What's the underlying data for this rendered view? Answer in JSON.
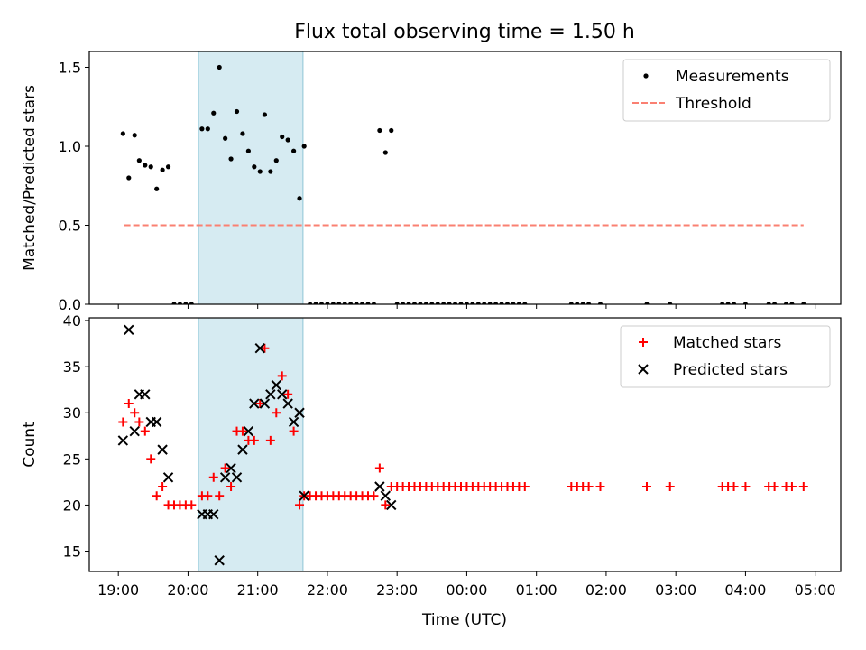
{
  "figure": {
    "title": "Flux total observing time = 1.50 h",
    "xlabel": "Time (UTC)"
  },
  "colors": {
    "measurement": "#000000",
    "threshold": "#fa8072",
    "matched": "#ff0000",
    "predicted": "#000000",
    "highlight": "#add8e6",
    "highlight_edge": "#8fc6d6"
  },
  "chart_data": [
    {
      "type": "scatter",
      "ylabel": "Matched/Predicted stars",
      "ylim": [
        0,
        1.6
      ],
      "yticks": [
        0.0,
        0.5,
        1.0,
        1.5
      ],
      "ytick_labels": [
        "0.0",
        "0.5",
        "1.0",
        "1.5"
      ],
      "xlim": [
        "18:35",
        "29:22"
      ],
      "xticks": [
        "19:00",
        "20:00",
        "21:00",
        "22:00",
        "23:00",
        "24:00",
        "25:00",
        "26:00",
        "27:00",
        "28:00",
        "29:00"
      ],
      "xtick_labels": [
        "",
        "",
        "",
        "",
        "",
        "",
        "",
        "",
        "",
        "",
        ""
      ],
      "highlight_span": [
        "20:09",
        "21:39"
      ],
      "legend": {
        "position": "upper right",
        "entries": [
          "Measurements",
          "Threshold"
        ]
      },
      "threshold": {
        "name": "Threshold",
        "y": 0.5,
        "x_range": [
          "19:05",
          "28:50"
        ]
      },
      "series": [
        {
          "name": "Measurements",
          "points": [
            [
              "19:04",
              1.08
            ],
            [
              "19:09",
              0.8
            ],
            [
              "19:14",
              1.07
            ],
            [
              "19:18",
              0.91
            ],
            [
              "19:23",
              0.88
            ],
            [
              "19:28",
              0.87
            ],
            [
              "19:33",
              0.73
            ],
            [
              "19:38",
              0.85
            ],
            [
              "19:43",
              0.87
            ],
            [
              "19:48",
              0.0
            ],
            [
              "19:53",
              0.0
            ],
            [
              "19:58",
              0.0
            ],
            [
              "20:03",
              0.0
            ],
            [
              "20:12",
              1.11
            ],
            [
              "20:17",
              1.11
            ],
            [
              "20:22",
              1.21
            ],
            [
              "20:27",
              1.5
            ],
            [
              "20:32",
              1.05
            ],
            [
              "20:37",
              0.92
            ],
            [
              "20:42",
              1.22
            ],
            [
              "20:47",
              1.08
            ],
            [
              "20:52",
              0.97
            ],
            [
              "20:57",
              0.87
            ],
            [
              "21:02",
              0.84
            ],
            [
              "21:06",
              1.2
            ],
            [
              "21:11",
              0.84
            ],
            [
              "21:16",
              0.91
            ],
            [
              "21:21",
              1.06
            ],
            [
              "21:26",
              1.04
            ],
            [
              "21:31",
              0.97
            ],
            [
              "21:36",
              0.67
            ],
            [
              "21:40",
              1.0
            ],
            [
              "21:45",
              0.0
            ],
            [
              "21:50",
              0.0
            ],
            [
              "21:55",
              0.0
            ],
            [
              "22:00",
              0.0
            ],
            [
              "22:05",
              0.0
            ],
            [
              "22:10",
              0.0
            ],
            [
              "22:15",
              0.0
            ],
            [
              "22:20",
              0.0
            ],
            [
              "22:25",
              0.0
            ],
            [
              "22:30",
              0.0
            ],
            [
              "22:35",
              0.0
            ],
            [
              "22:40",
              0.0
            ],
            [
              "22:45",
              1.1
            ],
            [
              "22:50",
              0.96
            ],
            [
              "22:55",
              1.1
            ],
            [
              "23:00",
              0.0
            ],
            [
              "23:05",
              0.0
            ],
            [
              "23:10",
              0.0
            ],
            [
              "23:15",
              0.0
            ],
            [
              "23:20",
              0.0
            ],
            [
              "23:25",
              0.0
            ],
            [
              "23:30",
              0.0
            ],
            [
              "23:35",
              0.0
            ],
            [
              "23:40",
              0.0
            ],
            [
              "23:45",
              0.0
            ],
            [
              "23:50",
              0.0
            ],
            [
              "23:55",
              0.0
            ],
            [
              "24:00",
              0.0
            ],
            [
              "24:05",
              0.0
            ],
            [
              "24:10",
              0.0
            ],
            [
              "24:15",
              0.0
            ],
            [
              "24:20",
              0.0
            ],
            [
              "24:25",
              0.0
            ],
            [
              "24:30",
              0.0
            ],
            [
              "24:35",
              0.0
            ],
            [
              "24:40",
              0.0
            ],
            [
              "24:45",
              0.0
            ],
            [
              "24:50",
              0.0
            ],
            [
              "25:30",
              0.0
            ],
            [
              "25:35",
              0.0
            ],
            [
              "25:40",
              0.0
            ],
            [
              "25:45",
              0.0
            ],
            [
              "25:55",
              0.0
            ],
            [
              "26:35",
              0.0
            ],
            [
              "26:55",
              0.0
            ],
            [
              "27:40",
              0.0
            ],
            [
              "27:45",
              0.0
            ],
            [
              "27:50",
              0.0
            ],
            [
              "28:00",
              0.0
            ],
            [
              "28:20",
              0.0
            ],
            [
              "28:25",
              0.0
            ],
            [
              "28:35",
              0.0
            ],
            [
              "28:40",
              0.0
            ],
            [
              "28:50",
              0.0
            ]
          ]
        }
      ]
    },
    {
      "type": "scatter",
      "ylabel": "Count",
      "ylim": [
        12.8,
        40.3
      ],
      "yticks": [
        15,
        20,
        25,
        30,
        35,
        40
      ],
      "ytick_labels": [
        "15",
        "20",
        "25",
        "30",
        "35",
        "40"
      ],
      "xlim": [
        "18:35",
        "29:22"
      ],
      "xticks": [
        "19:00",
        "20:00",
        "21:00",
        "22:00",
        "23:00",
        "24:00",
        "25:00",
        "26:00",
        "27:00",
        "28:00",
        "29:00"
      ],
      "xtick_labels": [
        "19:00",
        "20:00",
        "21:00",
        "22:00",
        "23:00",
        "00:00",
        "01:00",
        "02:00",
        "03:00",
        "04:00",
        "05:00"
      ],
      "highlight_span": [
        "20:09",
        "21:39"
      ],
      "legend": {
        "position": "upper right",
        "entries": [
          "Matched stars",
          "Predicted stars"
        ]
      },
      "series": [
        {
          "name": "Matched stars",
          "marker": "plus",
          "points": [
            [
              "19:04",
              29
            ],
            [
              "19:09",
              31
            ],
            [
              "19:14",
              30
            ],
            [
              "19:18",
              29
            ],
            [
              "19:23",
              28
            ],
            [
              "19:28",
              25
            ],
            [
              "19:33",
              21
            ],
            [
              "19:38",
              22
            ],
            [
              "19:43",
              20
            ],
            [
              "19:48",
              20
            ],
            [
              "19:53",
              20
            ],
            [
              "19:58",
              20
            ],
            [
              "20:03",
              20
            ],
            [
              "20:12",
              21
            ],
            [
              "20:17",
              21
            ],
            [
              "20:22",
              23
            ],
            [
              "20:27",
              21
            ],
            [
              "20:32",
              24
            ],
            [
              "20:37",
              22
            ],
            [
              "20:42",
              28
            ],
            [
              "20:47",
              28
            ],
            [
              "20:52",
              27
            ],
            [
              "20:57",
              27
            ],
            [
              "21:02",
              31
            ],
            [
              "21:06",
              37
            ],
            [
              "21:11",
              27
            ],
            [
              "21:16",
              30
            ],
            [
              "21:21",
              34
            ],
            [
              "21:26",
              32
            ],
            [
              "21:31",
              28
            ],
            [
              "21:36",
              20
            ],
            [
              "21:40",
              21
            ],
            [
              "21:45",
              21
            ],
            [
              "21:50",
              21
            ],
            [
              "21:55",
              21
            ],
            [
              "22:00",
              21
            ],
            [
              "22:05",
              21
            ],
            [
              "22:10",
              21
            ],
            [
              "22:15",
              21
            ],
            [
              "22:20",
              21
            ],
            [
              "22:25",
              21
            ],
            [
              "22:30",
              21
            ],
            [
              "22:35",
              21
            ],
            [
              "22:40",
              21
            ],
            [
              "22:45",
              24
            ],
            [
              "22:50",
              20
            ],
            [
              "22:55",
              22
            ],
            [
              "23:00",
              22
            ],
            [
              "23:05",
              22
            ],
            [
              "23:10",
              22
            ],
            [
              "23:15",
              22
            ],
            [
              "23:20",
              22
            ],
            [
              "23:25",
              22
            ],
            [
              "23:30",
              22
            ],
            [
              "23:35",
              22
            ],
            [
              "23:40",
              22
            ],
            [
              "23:45",
              22
            ],
            [
              "23:50",
              22
            ],
            [
              "23:55",
              22
            ],
            [
              "24:00",
              22
            ],
            [
              "24:05",
              22
            ],
            [
              "24:10",
              22
            ],
            [
              "24:15",
              22
            ],
            [
              "24:20",
              22
            ],
            [
              "24:25",
              22
            ],
            [
              "24:30",
              22
            ],
            [
              "24:35",
              22
            ],
            [
              "24:40",
              22
            ],
            [
              "24:45",
              22
            ],
            [
              "24:50",
              22
            ],
            [
              "25:30",
              22
            ],
            [
              "25:35",
              22
            ],
            [
              "25:40",
              22
            ],
            [
              "25:45",
              22
            ],
            [
              "25:55",
              22
            ],
            [
              "26:35",
              22
            ],
            [
              "26:55",
              22
            ],
            [
              "27:40",
              22
            ],
            [
              "27:45",
              22
            ],
            [
              "27:50",
              22
            ],
            [
              "28:00",
              22
            ],
            [
              "28:20",
              22
            ],
            [
              "28:25",
              22
            ],
            [
              "28:35",
              22
            ],
            [
              "28:40",
              22
            ],
            [
              "28:50",
              22
            ]
          ]
        },
        {
          "name": "Predicted stars",
          "marker": "x",
          "points": [
            [
              "19:04",
              27
            ],
            [
              "19:09",
              39
            ],
            [
              "19:14",
              28
            ],
            [
              "19:18",
              32
            ],
            [
              "19:23",
              32
            ],
            [
              "19:28",
              29
            ],
            [
              "19:33",
              29
            ],
            [
              "19:38",
              26
            ],
            [
              "19:43",
              23
            ],
            [
              "20:12",
              19
            ],
            [
              "20:17",
              19
            ],
            [
              "20:22",
              19
            ],
            [
              "20:27",
              14
            ],
            [
              "20:32",
              23
            ],
            [
              "20:37",
              24
            ],
            [
              "20:42",
              23
            ],
            [
              "20:47",
              26
            ],
            [
              "20:52",
              28
            ],
            [
              "20:57",
              31
            ],
            [
              "21:02",
              37
            ],
            [
              "21:06",
              31
            ],
            [
              "21:11",
              32
            ],
            [
              "21:16",
              33
            ],
            [
              "21:21",
              32
            ],
            [
              "21:26",
              31
            ],
            [
              "21:31",
              29
            ],
            [
              "21:36",
              30
            ],
            [
              "21:40",
              21
            ],
            [
              "22:45",
              22
            ],
            [
              "22:50",
              21
            ],
            [
              "22:55",
              20
            ]
          ]
        }
      ]
    }
  ]
}
